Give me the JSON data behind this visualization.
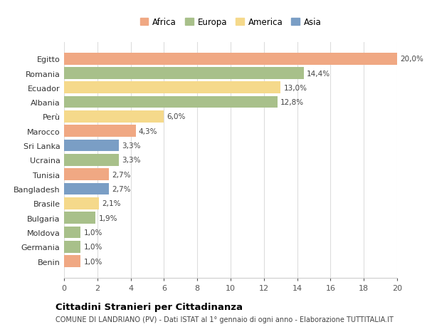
{
  "countries": [
    "Egitto",
    "Romania",
    "Ecuador",
    "Albania",
    "Perù",
    "Marocco",
    "Sri Lanka",
    "Ucraina",
    "Tunisia",
    "Bangladesh",
    "Brasile",
    "Bulgaria",
    "Moldova",
    "Germania",
    "Benin"
  ],
  "values": [
    20.0,
    14.4,
    13.0,
    12.8,
    6.0,
    4.3,
    3.3,
    3.3,
    2.7,
    2.7,
    2.1,
    1.9,
    1.0,
    1.0,
    1.0
  ],
  "labels": [
    "20,0%",
    "14,4%",
    "13,0%",
    "12,8%",
    "6,0%",
    "4,3%",
    "3,3%",
    "3,3%",
    "2,7%",
    "2,7%",
    "2,1%",
    "1,9%",
    "1,0%",
    "1,0%",
    "1,0%"
  ],
  "continents": [
    "Africa",
    "Europa",
    "America",
    "Europa",
    "America",
    "Africa",
    "Asia",
    "Europa",
    "Africa",
    "Asia",
    "America",
    "Europa",
    "Europa",
    "Europa",
    "Africa"
  ],
  "colors": {
    "Africa": "#F0A883",
    "Europa": "#A8C08A",
    "America": "#F5D98B",
    "Asia": "#7A9EC5"
  },
  "legend_order": [
    "Africa",
    "Europa",
    "America",
    "Asia"
  ],
  "title": "Cittadini Stranieri per Cittadinanza",
  "subtitle": "COMUNE DI LANDRIANO (PV) - Dati ISTAT al 1° gennaio di ogni anno - Elaborazione TUTTITALIA.IT",
  "xlim": [
    0,
    20
  ],
  "xticks": [
    0,
    2,
    4,
    6,
    8,
    10,
    12,
    14,
    16,
    18,
    20
  ],
  "background_color": "#ffffff",
  "grid_color": "#dddddd"
}
